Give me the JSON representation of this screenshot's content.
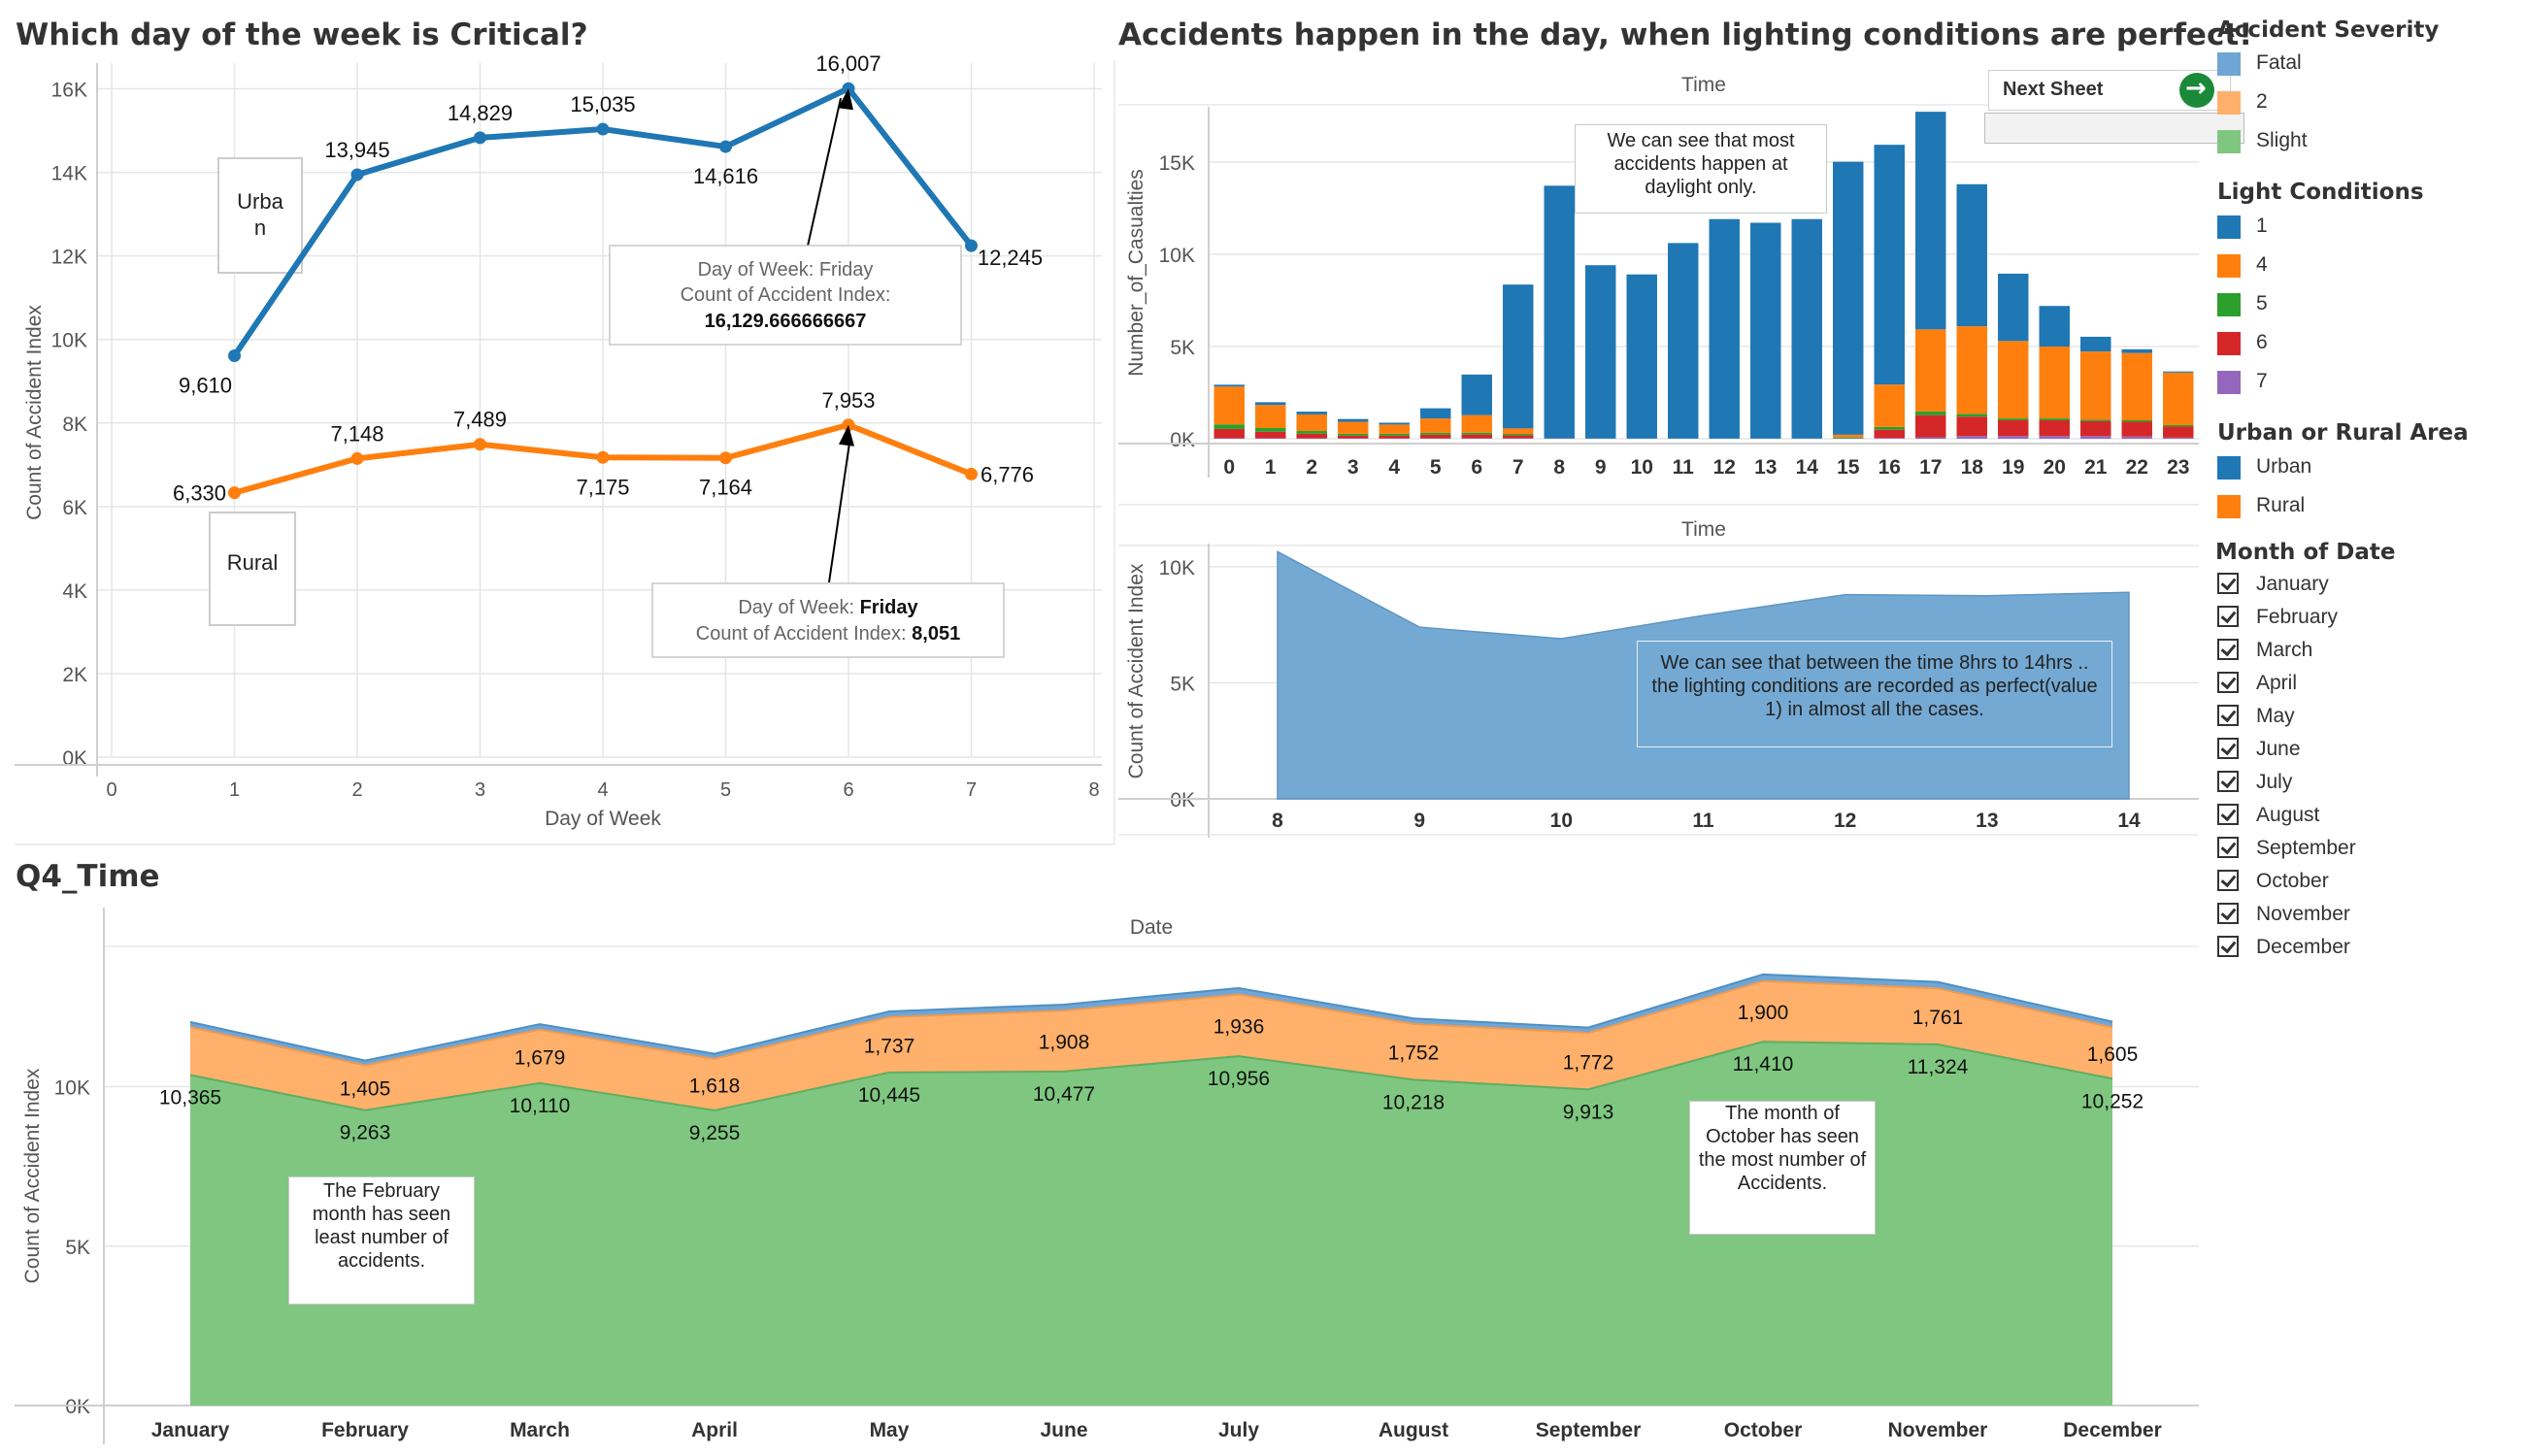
{
  "titles": {
    "weekday": "Which day  of the week is Critical?",
    "lighting": "Accidents happen in the day, when lighting conditions are perfect!",
    "q4": "Q4_Time"
  },
  "next_sheet": {
    "label": "Next Sheet"
  },
  "legend": {
    "severity": {
      "title": "Accident Severity",
      "items": [
        {
          "label": "Fatal",
          "color": "#6fa6d6"
        },
        {
          "label": "2",
          "color": "#ffb06b"
        },
        {
          "label": "Slight",
          "color": "#7fc780"
        }
      ]
    },
    "light": {
      "title": "Light Conditions",
      "items": [
        {
          "label": "1",
          "color": "#1f77b4"
        },
        {
          "label": "4",
          "color": "#ff7f0e"
        },
        {
          "label": "5",
          "color": "#2ca02c"
        },
        {
          "label": "6",
          "color": "#d62728"
        },
        {
          "label": "7",
          "color": "#9467bd"
        }
      ]
    },
    "area": {
      "title": "Urban or Rural Area",
      "items": [
        {
          "label": "Urban",
          "color": "#1f77b4"
        },
        {
          "label": "Rural",
          "color": "#ff7f0e"
        }
      ]
    },
    "month": {
      "title": "Month of Date",
      "items": [
        "January",
        "February",
        "March",
        "April",
        "May",
        "June",
        "July",
        "August",
        "September",
        "October",
        "November",
        "December"
      ]
    }
  },
  "annotations": {
    "lighting_top": "We can see that most accidents happen at daylight only.",
    "lighting_bottom": "We can see that between the time 8hrs to 14hrs .. the lighting conditions are recorded as perfect(value 1) in almost all the cases.",
    "feb": "The February month has seen least number of accidents.",
    "oct": "The month of October has seen the most number of Accidents."
  },
  "chart_data": [
    {
      "type": "line",
      "title": "Which day  of the week is Critical?",
      "xlabel": "Day of Week",
      "ylabel": "Count of Accident Index",
      "x": [
        1,
        2,
        3,
        4,
        5,
        6,
        7
      ],
      "xlim": [
        0,
        8
      ],
      "ylim": [
        0,
        16500
      ],
      "y_ticks": [
        "0K",
        "2K",
        "4K",
        "6K",
        "8K",
        "10K",
        "12K",
        "14K",
        "16K"
      ],
      "series": [
        {
          "name": "Urban",
          "color": "#1f77b4",
          "values": [
            9610,
            13945,
            14829,
            15035,
            14616,
            16007,
            12245
          ],
          "labels": [
            "9,610",
            "13,945",
            "14,829",
            "15,035",
            "14,616",
            "16,007",
            "12,245"
          ]
        },
        {
          "name": "Rural",
          "color": "#ff7f0e",
          "values": [
            6330,
            7148,
            7489,
            7175,
            7164,
            7953,
            6776
          ],
          "labels": [
            "6,330",
            "7,148",
            "7,489",
            "7,175",
            "7,164",
            "7,953",
            "6,776"
          ]
        }
      ],
      "tooltips": [
        {
          "l1": "Day of Week: Friday",
          "l2": "Count of Accident Index:",
          "l3": "16,129.666666667"
        },
        {
          "l1a": "Day of Week: ",
          "l1b": "Friday",
          "l2a": "Count of Accident Index: ",
          "l2b": "8,051"
        }
      ]
    },
    {
      "type": "bar",
      "stacked": true,
      "header": "Time",
      "ylabel": "Number_of_Casualties",
      "categories": [
        "0",
        "1",
        "2",
        "3",
        "4",
        "5",
        "6",
        "7",
        "8",
        "9",
        "10",
        "11",
        "12",
        "13",
        "14",
        "15",
        "16",
        "17",
        "18",
        "19",
        "20",
        "21",
        "22",
        "23"
      ],
      "ylim": [
        0,
        18000
      ],
      "y_ticks": [
        "0K",
        "5K",
        "10K",
        "15K"
      ],
      "series": [
        {
          "name": "7",
          "color": "#9467bd",
          "values": [
            30,
            30,
            20,
            20,
            20,
            20,
            30,
            30,
            20,
            10,
            10,
            10,
            10,
            10,
            10,
            20,
            40,
            80,
            150,
            150,
            150,
            150,
            120,
            60
          ]
        },
        {
          "name": "6",
          "color": "#d62728",
          "values": [
            500,
            350,
            250,
            150,
            150,
            200,
            200,
            150,
            0,
            0,
            0,
            0,
            0,
            0,
            0,
            0,
            450,
            1200,
            1050,
            850,
            850,
            800,
            800,
            600
          ]
        },
        {
          "name": "5",
          "color": "#2ca02c",
          "values": [
            250,
            200,
            150,
            100,
            100,
            100,
            100,
            80,
            0,
            0,
            0,
            0,
            0,
            0,
            0,
            50,
            150,
            200,
            150,
            100,
            100,
            80,
            80,
            80
          ]
        },
        {
          "name": "4",
          "color": "#ff7f0e",
          "values": [
            2050,
            1250,
            900,
            650,
            500,
            780,
            950,
            300,
            0,
            0,
            0,
            0,
            0,
            0,
            0,
            150,
            2300,
            4450,
            4750,
            4200,
            3900,
            3700,
            3650,
            2850
          ]
        },
        {
          "name": "1",
          "color": "#1f77b4",
          "values": [
            100,
            150,
            150,
            150,
            100,
            550,
            2200,
            7800,
            13700,
            9400,
            8900,
            10600,
            11900,
            11700,
            11900,
            14800,
            13000,
            11800,
            7700,
            3650,
            2200,
            800,
            200,
            60
          ]
        }
      ]
    },
    {
      "type": "area",
      "header": "Time",
      "ylabel": "Count of Accident Index",
      "x": [
        8,
        9,
        10,
        11,
        12,
        13,
        14
      ],
      "values": [
        10650,
        7400,
        6900,
        7900,
        8800,
        8750,
        8900
      ],
      "ylim": [
        0,
        11000
      ],
      "y_ticks": [
        "0K",
        "5K",
        "10K"
      ],
      "color": "#74a9d3"
    },
    {
      "type": "area",
      "stacked": true,
      "title": "Q4_Time",
      "header": "Date",
      "ylabel": "Count of Accident Index",
      "categories": [
        "January",
        "February",
        "March",
        "April",
        "May",
        "June",
        "July",
        "August",
        "September",
        "October",
        "November",
        "December"
      ],
      "ylim": [
        0,
        14400
      ],
      "y_ticks": [
        "0K",
        "5K",
        "10K"
      ],
      "series": [
        {
          "name": "Slight",
          "color": "#7fc780",
          "values": [
            10365,
            9263,
            10110,
            9255,
            10445,
            10477,
            10956,
            10218,
            9913,
            11410,
            11324,
            10252
          ],
          "labels": [
            "10,365",
            "9,263",
            "10,110",
            "9,255",
            "10,445",
            "10,477",
            "10,956",
            "10,218",
            "9,913",
            "11,410",
            "11,324",
            "10,252"
          ]
        },
        {
          "name": "2",
          "color": "#ffb06b",
          "values": [
            1505,
            1405,
            1679,
            1618,
            1737,
            1908,
            1936,
            1752,
            1772,
            1900,
            1761,
            1605
          ],
          "labels": [
            "",
            "1,405",
            "1,679",
            "1,618",
            "1,737",
            "1,908",
            "1,936",
            "1,752",
            "1,772",
            "1,900",
            "1,761",
            "1,605"
          ]
        },
        {
          "name": "Fatal",
          "color": "#6fa6d6",
          "values": [
            160,
            150,
            170,
            160,
            180,
            190,
            200,
            170,
            170,
            210,
            200,
            180
          ]
        }
      ]
    }
  ]
}
